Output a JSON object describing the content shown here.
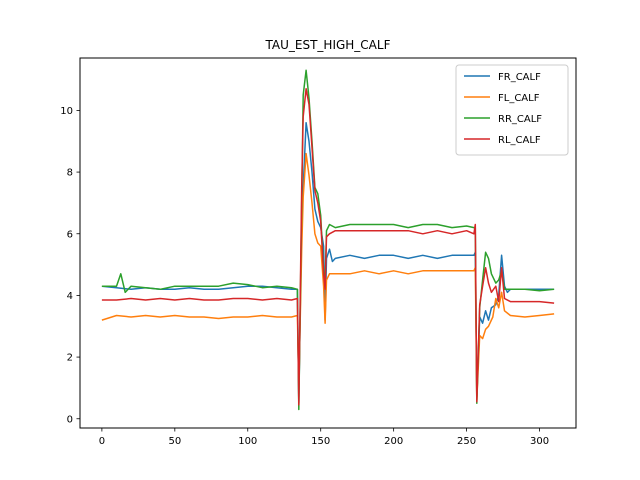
{
  "chart_data": {
    "type": "line",
    "title": "TAU_EST_HIGH_CALF",
    "xlabel": "",
    "ylabel": "",
    "xlim": [
      -15,
      325
    ],
    "ylim": [
      -0.3,
      11.7
    ],
    "xticks": [
      0,
      50,
      100,
      150,
      200,
      250,
      300
    ],
    "yticks": [
      0,
      2,
      4,
      6,
      8,
      10
    ],
    "grid": false,
    "legend_position": "top-right",
    "series": [
      {
        "name": "FR_CALF",
        "color": "#1f77b4",
        "points": [
          [
            0,
            4.3
          ],
          [
            10,
            4.25
          ],
          [
            20,
            4.2
          ],
          [
            30,
            4.25
          ],
          [
            40,
            4.2
          ],
          [
            50,
            4.2
          ],
          [
            60,
            4.25
          ],
          [
            70,
            4.2
          ],
          [
            80,
            4.2
          ],
          [
            90,
            4.25
          ],
          [
            100,
            4.3
          ],
          [
            110,
            4.3
          ],
          [
            120,
            4.25
          ],
          [
            130,
            4.2
          ],
          [
            134,
            4.2
          ],
          [
            135,
            0.5
          ],
          [
            137,
            6.5
          ],
          [
            138,
            7.5
          ],
          [
            140,
            9.6
          ],
          [
            142,
            9.0
          ],
          [
            144,
            8.0
          ],
          [
            146,
            6.8
          ],
          [
            148,
            6.4
          ],
          [
            150,
            6.2
          ],
          [
            152,
            5.6
          ],
          [
            153,
            3.2
          ],
          [
            154,
            5.2
          ],
          [
            156,
            5.5
          ],
          [
            158,
            5.1
          ],
          [
            160,
            5.2
          ],
          [
            170,
            5.3
          ],
          [
            180,
            5.2
          ],
          [
            190,
            5.3
          ],
          [
            200,
            5.3
          ],
          [
            210,
            5.2
          ],
          [
            220,
            5.3
          ],
          [
            230,
            5.2
          ],
          [
            240,
            5.3
          ],
          [
            250,
            5.3
          ],
          [
            255,
            5.3
          ],
          [
            256,
            5.4
          ],
          [
            257,
            0.7
          ],
          [
            259,
            3.3
          ],
          [
            261,
            3.1
          ],
          [
            263,
            3.5
          ],
          [
            265,
            3.2
          ],
          [
            267,
            3.6
          ],
          [
            270,
            3.7
          ],
          [
            272,
            4.0
          ],
          [
            274,
            5.3
          ],
          [
            276,
            4.3
          ],
          [
            278,
            4.1
          ],
          [
            280,
            4.2
          ],
          [
            290,
            4.2
          ],
          [
            300,
            4.2
          ],
          [
            310,
            4.2
          ]
        ]
      },
      {
        "name": "FL_CALF",
        "color": "#ff7f0e",
        "points": [
          [
            0,
            3.2
          ],
          [
            10,
            3.35
          ],
          [
            20,
            3.3
          ],
          [
            30,
            3.35
          ],
          [
            40,
            3.3
          ],
          [
            50,
            3.35
          ],
          [
            60,
            3.3
          ],
          [
            70,
            3.3
          ],
          [
            80,
            3.25
          ],
          [
            90,
            3.3
          ],
          [
            100,
            3.3
          ],
          [
            110,
            3.35
          ],
          [
            120,
            3.3
          ],
          [
            130,
            3.3
          ],
          [
            134,
            3.35
          ],
          [
            135,
            1.0
          ],
          [
            137,
            5.5
          ],
          [
            138,
            7.2
          ],
          [
            140,
            8.6
          ],
          [
            142,
            7.9
          ],
          [
            144,
            7.0
          ],
          [
            146,
            6.0
          ],
          [
            148,
            5.7
          ],
          [
            150,
            5.6
          ],
          [
            152,
            4.3
          ],
          [
            153,
            3.1
          ],
          [
            154,
            4.5
          ],
          [
            156,
            4.7
          ],
          [
            160,
            4.7
          ],
          [
            170,
            4.7
          ],
          [
            180,
            4.8
          ],
          [
            190,
            4.7
          ],
          [
            200,
            4.8
          ],
          [
            210,
            4.7
          ],
          [
            220,
            4.8
          ],
          [
            230,
            4.8
          ],
          [
            240,
            4.8
          ],
          [
            250,
            4.8
          ],
          [
            255,
            4.8
          ],
          [
            256,
            4.9
          ],
          [
            257,
            0.6
          ],
          [
            259,
            2.7
          ],
          [
            261,
            2.6
          ],
          [
            263,
            2.9
          ],
          [
            265,
            3.0
          ],
          [
            268,
            3.3
          ],
          [
            270,
            3.9
          ],
          [
            272,
            3.6
          ],
          [
            274,
            4.1
          ],
          [
            276,
            3.5
          ],
          [
            280,
            3.35
          ],
          [
            290,
            3.3
          ],
          [
            300,
            3.35
          ],
          [
            310,
            3.4
          ]
        ]
      },
      {
        "name": "RR_CALF",
        "color": "#2ca02c",
        "points": [
          [
            0,
            4.3
          ],
          [
            10,
            4.3
          ],
          [
            13,
            4.7
          ],
          [
            16,
            4.1
          ],
          [
            20,
            4.3
          ],
          [
            30,
            4.25
          ],
          [
            40,
            4.2
          ],
          [
            50,
            4.3
          ],
          [
            60,
            4.3
          ],
          [
            70,
            4.3
          ],
          [
            80,
            4.3
          ],
          [
            90,
            4.4
          ],
          [
            100,
            4.35
          ],
          [
            110,
            4.25
          ],
          [
            120,
            4.3
          ],
          [
            130,
            4.25
          ],
          [
            134,
            4.2
          ],
          [
            135,
            0.3
          ],
          [
            137,
            7.0
          ],
          [
            138,
            10.5
          ],
          [
            140,
            11.3
          ],
          [
            142,
            10.4
          ],
          [
            144,
            9.0
          ],
          [
            146,
            7.5
          ],
          [
            148,
            7.3
          ],
          [
            150,
            6.6
          ],
          [
            152,
            4.8
          ],
          [
            153,
            4.4
          ],
          [
            154,
            6.1
          ],
          [
            156,
            6.3
          ],
          [
            160,
            6.2
          ],
          [
            170,
            6.3
          ],
          [
            180,
            6.3
          ],
          [
            190,
            6.3
          ],
          [
            200,
            6.3
          ],
          [
            210,
            6.2
          ],
          [
            220,
            6.3
          ],
          [
            230,
            6.3
          ],
          [
            240,
            6.2
          ],
          [
            250,
            6.25
          ],
          [
            255,
            6.2
          ],
          [
            256,
            6.2
          ],
          [
            257,
            0.5
          ],
          [
            259,
            3.6
          ],
          [
            261,
            4.5
          ],
          [
            263,
            5.4
          ],
          [
            265,
            5.2
          ],
          [
            267,
            4.7
          ],
          [
            270,
            4.4
          ],
          [
            272,
            4.5
          ],
          [
            274,
            4.8
          ],
          [
            276,
            4.2
          ],
          [
            280,
            4.2
          ],
          [
            290,
            4.2
          ],
          [
            300,
            4.15
          ],
          [
            310,
            4.2
          ]
        ]
      },
      {
        "name": "RL_CALF",
        "color": "#d62728",
        "points": [
          [
            0,
            3.85
          ],
          [
            10,
            3.85
          ],
          [
            20,
            3.9
          ],
          [
            30,
            3.85
          ],
          [
            40,
            3.9
          ],
          [
            50,
            3.85
          ],
          [
            60,
            3.9
          ],
          [
            70,
            3.85
          ],
          [
            80,
            3.85
          ],
          [
            90,
            3.9
          ],
          [
            100,
            3.9
          ],
          [
            110,
            3.85
          ],
          [
            120,
            3.9
          ],
          [
            130,
            3.85
          ],
          [
            134,
            3.9
          ],
          [
            135,
            0.45
          ],
          [
            137,
            7.5
          ],
          [
            138,
            9.8
          ],
          [
            140,
            10.7
          ],
          [
            142,
            10.2
          ],
          [
            144,
            8.8
          ],
          [
            146,
            7.4
          ],
          [
            148,
            7.0
          ],
          [
            150,
            6.4
          ],
          [
            152,
            4.7
          ],
          [
            153,
            4.2
          ],
          [
            154,
            5.9
          ],
          [
            156,
            6.0
          ],
          [
            160,
            6.1
          ],
          [
            170,
            6.1
          ],
          [
            180,
            6.1
          ],
          [
            190,
            6.1
          ],
          [
            200,
            6.1
          ],
          [
            210,
            6.1
          ],
          [
            220,
            6.0
          ],
          [
            230,
            6.1
          ],
          [
            240,
            6.0
          ],
          [
            250,
            6.1
          ],
          [
            255,
            6.0
          ],
          [
            256,
            6.3
          ],
          [
            257,
            0.55
          ],
          [
            259,
            3.7
          ],
          [
            261,
            4.3
          ],
          [
            263,
            4.9
          ],
          [
            265,
            4.4
          ],
          [
            267,
            4.1
          ],
          [
            270,
            4.3
          ],
          [
            272,
            3.8
          ],
          [
            274,
            4.9
          ],
          [
            276,
            3.9
          ],
          [
            280,
            3.8
          ],
          [
            290,
            3.8
          ],
          [
            300,
            3.8
          ],
          [
            310,
            3.75
          ]
        ]
      }
    ]
  }
}
